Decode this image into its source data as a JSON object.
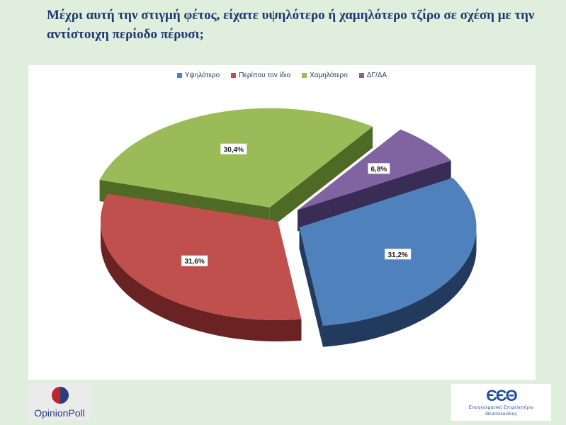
{
  "page": {
    "title_line1": "Μέχρι αυτή την στιγμή φέτος, είχατε υψηλότερο ή χαμηλότερο τζίρο σε σχέση με την",
    "title_line2": "αντίστοιχη περίοδο πέρυσι;"
  },
  "logos": {
    "left_text": "OpinionPoll",
    "right_mark": "ЄЄΘ",
    "right_line1": "Επαγγελματικό Επιμελητήριο",
    "right_line2": "Θεσσαλονίκης"
  },
  "chart_data": {
    "type": "pie",
    "style": "3d-exploded",
    "legend_position": "top",
    "categories": [
      "Υψηλότερο",
      "Περίπου τον ίδιο",
      "Χαμηλότερο",
      "ΔΓ/ΔΑ"
    ],
    "values": [
      31.2,
      31.6,
      30.4,
      6.8
    ],
    "labels": [
      "31,2%",
      "31,6%",
      "30,4%",
      "6,8%"
    ],
    "colors": [
      "#4f81bd",
      "#c0504d",
      "#9bbb59",
      "#8064a2"
    ],
    "side_colors": [
      "#223a5e",
      "#6b2222",
      "#4e6a25",
      "#3a2d55"
    ]
  }
}
